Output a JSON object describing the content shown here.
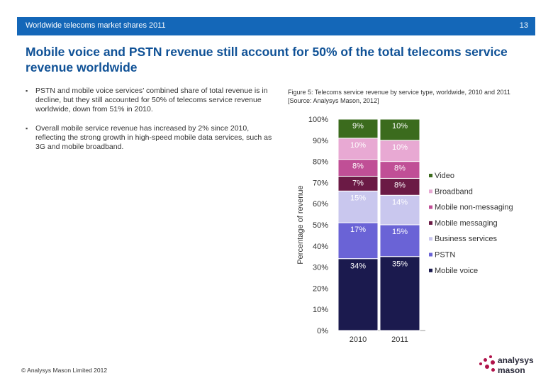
{
  "header": {
    "title": "Worldwide telecoms market shares 2011",
    "page_number": "13"
  },
  "slide_title": "Mobile voice and PSTN revenue still account for 50% of the total telecoms service revenue worldwide",
  "bullets": [
    "PSTN and mobile voice services’ combined share of total revenue is in decline, but they still accounted for 50% of telecoms service revenue worldwide, down from 51% in 2010.",
    "Overall mobile service revenue has increased by 2% since 2010, reflecting the strong growth in high-speed mobile data services, such as 3G and mobile broadband."
  ],
  "figure_caption": "Figure 5: Telecoms service revenue by service type, worldwide, 2010 and 2011 [Source: Analysys Mason, 2012]",
  "footer": "© Analysys Mason Limited 2012",
  "logo": {
    "line1": "analysys",
    "line2": "mason"
  },
  "colors": {
    "header_bar": "#1467b8",
    "title": "#0f5196"
  },
  "chart_data": {
    "type": "bar",
    "stacked": true,
    "categories": [
      "2010",
      "2011"
    ],
    "ylabel": "Percentage of revenue",
    "xlabel": "",
    "ylim": [
      0,
      100
    ],
    "yticks": [
      "0%",
      "10%",
      "20%",
      "30%",
      "40%",
      "50%",
      "60%",
      "70%",
      "80%",
      "90%",
      "100%"
    ],
    "legend_position": "right",
    "series": [
      {
        "name": "Mobile voice",
        "values": [
          34,
          35
        ],
        "labels": [
          "34%",
          "35%"
        ],
        "color": "#1b1a4e"
      },
      {
        "name": "PSTN",
        "values": [
          17,
          15
        ],
        "labels": [
          "17%",
          "15%"
        ],
        "color": "#6a63d6"
      },
      {
        "name": "Business services",
        "values": [
          15,
          14
        ],
        "labels": [
          "15%",
          "14%"
        ],
        "color": "#c9c7ee"
      },
      {
        "name": "Mobile messaging",
        "values": [
          7,
          8
        ],
        "labels": [
          "7%",
          "8%"
        ],
        "color": "#6b1a45"
      },
      {
        "name": "Mobile non-messaging",
        "values": [
          8,
          8
        ],
        "labels": [
          "8%",
          "8%"
        ],
        "color": "#c04f96"
      },
      {
        "name": "Broadband",
        "values": [
          10,
          10
        ],
        "labels": [
          "10%",
          "10%"
        ],
        "color": "#e8a9d3"
      },
      {
        "name": "Video",
        "values": [
          9,
          10
        ],
        "labels": [
          "9%",
          "10%"
        ],
        "color": "#3b6b1d"
      }
    ]
  }
}
